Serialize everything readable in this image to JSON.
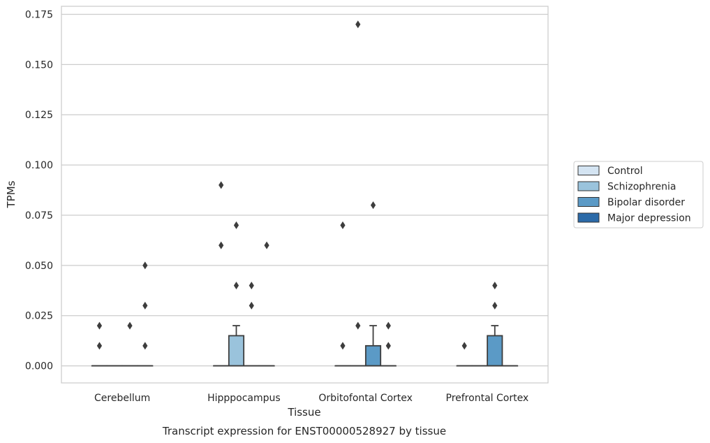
{
  "chart_data": {
    "type": "box",
    "caption": "Transcript expression for ENST00000528927 by tissue",
    "xlabel": "Tissue",
    "ylabel": "TPMs",
    "ylim": [
      -0.0085,
      0.179
    ],
    "yticks": [
      "0.000",
      "0.025",
      "0.050",
      "0.075",
      "0.100",
      "0.125",
      "0.150",
      "0.175"
    ],
    "ytick_values": [
      0,
      0.025,
      0.05,
      0.075,
      0.1,
      0.125,
      0.15,
      0.175
    ],
    "grid": true,
    "legend_position": "right",
    "categories": [
      "Cerebellum",
      "Hipppocampus",
      "Orbitofontal Cortex",
      "Prefrontal Cortex"
    ],
    "series": [
      {
        "name": "Control",
        "color": "#d4e4f2",
        "boxes": [
          {
            "q1": 0,
            "median": 0,
            "q3": 0,
            "whisker_low": 0,
            "whisker_high": 0,
            "outliers": [
              0.01,
              0.02
            ]
          },
          {
            "q1": 0,
            "median": 0,
            "q3": 0,
            "whisker_low": 0,
            "whisker_high": 0,
            "outliers": [
              0.06,
              0.09
            ]
          },
          {
            "q1": 0,
            "median": 0,
            "q3": 0,
            "whisker_low": 0,
            "whisker_high": 0,
            "outliers": [
              0.01,
              0.07
            ]
          },
          {
            "q1": 0,
            "median": 0,
            "q3": 0,
            "whisker_low": 0,
            "whisker_high": 0,
            "outliers": [
              0.01
            ]
          }
        ]
      },
      {
        "name": "Schizophrenia",
        "color": "#9ac3dc",
        "boxes": [
          {
            "q1": 0,
            "median": 0,
            "q3": 0,
            "whisker_low": 0,
            "whisker_high": 0,
            "outliers": []
          },
          {
            "q1": 0,
            "median": 0,
            "q3": 0.015,
            "whisker_low": 0,
            "whisker_high": 0.02,
            "outliers": [
              0.04,
              0.07
            ]
          },
          {
            "q1": 0,
            "median": 0,
            "q3": 0,
            "whisker_low": 0,
            "whisker_high": 0,
            "outliers": [
              0.02,
              0.17
            ]
          },
          {
            "q1": 0,
            "median": 0,
            "q3": 0,
            "whisker_low": 0,
            "whisker_high": 0,
            "outliers": []
          }
        ]
      },
      {
        "name": "Bipolar disorder",
        "color": "#5b9ac6",
        "boxes": [
          {
            "q1": 0,
            "median": 0,
            "q3": 0,
            "whisker_low": 0,
            "whisker_high": 0,
            "outliers": [
              0.02
            ]
          },
          {
            "q1": 0,
            "median": 0,
            "q3": 0,
            "whisker_low": 0,
            "whisker_high": 0,
            "outliers": [
              0.03,
              0.04
            ]
          },
          {
            "q1": 0,
            "median": 0,
            "q3": 0.01,
            "whisker_low": 0,
            "whisker_high": 0.02,
            "outliers": [
              0.08
            ]
          },
          {
            "q1": 0,
            "median": 0,
            "q3": 0.015,
            "whisker_low": 0,
            "whisker_high": 0.02,
            "outliers": [
              0.03,
              0.04
            ]
          }
        ]
      },
      {
        "name": "Major depression",
        "color": "#2b6aa8",
        "boxes": [
          {
            "q1": 0,
            "median": 0,
            "q3": 0,
            "whisker_low": 0,
            "whisker_high": 0,
            "outliers": [
              0.01,
              0.03,
              0.05
            ]
          },
          {
            "q1": 0,
            "median": 0,
            "q3": 0,
            "whisker_low": 0,
            "whisker_high": 0,
            "outliers": [
              0.06
            ]
          },
          {
            "q1": 0,
            "median": 0,
            "q3": 0,
            "whisker_low": 0,
            "whisker_high": 0,
            "outliers": [
              0.01,
              0.02
            ]
          },
          {
            "q1": 0,
            "median": 0,
            "q3": 0,
            "whisker_low": 0,
            "whisker_high": 0,
            "outliers": []
          }
        ]
      }
    ]
  }
}
